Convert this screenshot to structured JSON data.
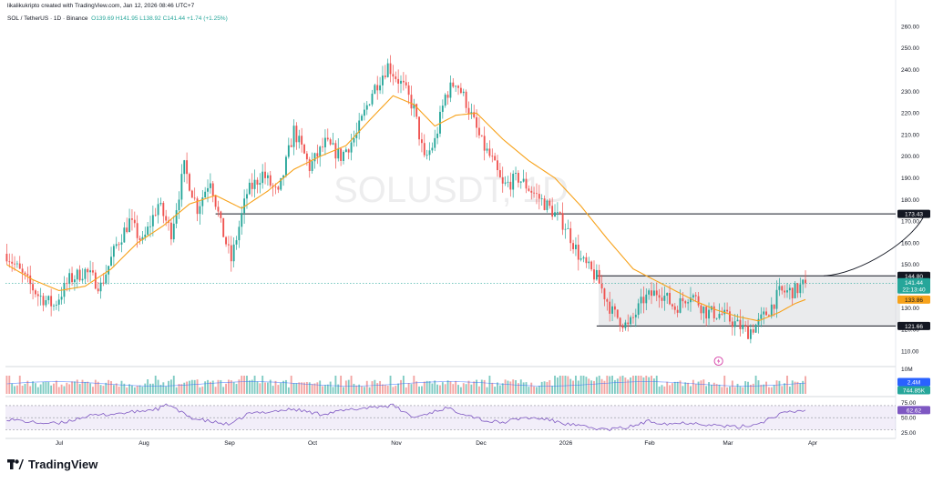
{
  "header": {
    "credit": "likalikukripto created with TradingView.com, Jan 12, 2026 08:46 UTC+7",
    "symbol_line": "SOL / TetherUS · 1D · Binance",
    "ohlc": "O139.69 H141.95 L138.92 C141.44 +1.74 (+1.25%)"
  },
  "watermark": "SOLUSDT, 1D",
  "branding": {
    "logo_text": "TradingView"
  },
  "colors": {
    "up": "#26a69a",
    "down": "#ef5350",
    "ma": "#f7a21b",
    "rsi": "#7e57c2",
    "level": "#131722",
    "price_tag": "#26a69a",
    "ma_tag": "#f7a21b"
  },
  "chart_data": [
    {
      "type": "candlestick",
      "panel": "price",
      "title": "SOL / TetherUS · 1D · Binance",
      "y_axis": {
        "ticks": [
          110,
          120,
          130,
          140,
          150,
          160,
          170,
          180,
          190,
          200,
          210,
          220,
          230,
          240,
          250,
          260
        ],
        "ylim": [
          105,
          263
        ]
      },
      "x_axis": {
        "labels": [
          "Jul",
          "Aug",
          "Sep",
          "Oct",
          "Nov",
          "Dec",
          "2026",
          "Feb",
          "Mar",
          "Apr"
        ]
      },
      "series": [
        {
          "name": "SOLUSDT",
          "type": "candlestick",
          "anchors": [
            [
              0,
              155
            ],
            [
              6,
              145
            ],
            [
              12,
              136
            ],
            [
              18,
              131
            ],
            [
              24,
              143
            ],
            [
              30,
              147
            ],
            [
              36,
              140
            ],
            [
              42,
              159
            ],
            [
              47,
              170
            ],
            [
              52,
              160
            ],
            [
              58,
              178
            ],
            [
              63,
              165
            ],
            [
              68,
              195
            ],
            [
              73,
              176
            ],
            [
              78,
              190
            ],
            [
              82,
              168
            ],
            [
              86,
              152
            ],
            [
              92,
              183
            ],
            [
              98,
              192
            ],
            [
              104,
              182
            ],
            [
              110,
              212
            ],
            [
              116,
              195
            ],
            [
              122,
              206
            ],
            [
              128,
              200
            ],
            [
              134,
              210
            ],
            [
              140,
              230
            ],
            [
              146,
              242
            ],
            [
              152,
              232
            ],
            [
              156,
              222
            ],
            [
              160,
              198
            ],
            [
              164,
              207
            ],
            [
              168,
              228
            ],
            [
              172,
              235
            ],
            [
              176,
              225
            ],
            [
              182,
              206
            ],
            [
              186,
              198
            ],
            [
              190,
              186
            ],
            [
              196,
              190
            ],
            [
              202,
              183
            ],
            [
              208,
              176
            ],
            [
              214,
              168
            ],
            [
              220,
              152
            ],
            [
              226,
              144
            ],
            [
              232,
              128
            ],
            [
              238,
              121
            ],
            [
              244,
              134
            ],
            [
              250,
              138
            ],
            [
              256,
              130
            ],
            [
              262,
              137
            ],
            [
              268,
              128
            ],
            [
              274,
              127
            ],
            [
              280,
              122
            ],
            [
              284,
              119
            ],
            [
              288,
              123
            ],
            [
              292,
              129
            ],
            [
              296,
              137
            ],
            [
              302,
              138
            ],
            [
              306,
              141.44
            ]
          ]
        },
        {
          "name": "MA",
          "type": "line",
          "anchors": [
            [
              0,
              150
            ],
            [
              10,
              143
            ],
            [
              20,
              138
            ],
            [
              30,
              140
            ],
            [
              40,
              148
            ],
            [
              50,
              160
            ],
            [
              60,
              168
            ],
            [
              70,
              178
            ],
            [
              80,
              182
            ],
            [
              90,
              176
            ],
            [
              100,
              184
            ],
            [
              110,
              194
            ],
            [
              120,
              200
            ],
            [
              130,
              205
            ],
            [
              140,
              218
            ],
            [
              148,
              228
            ],
            [
              156,
              224
            ],
            [
              164,
              214
            ],
            [
              172,
              219
            ],
            [
              180,
              220
            ],
            [
              190,
              208
            ],
            [
              200,
              198
            ],
            [
              210,
              190
            ],
            [
              220,
              177
            ],
            [
              230,
              162
            ],
            [
              240,
              148
            ],
            [
              248,
              143
            ],
            [
              256,
              138
            ],
            [
              264,
              133
            ],
            [
              272,
              129
            ],
            [
              280,
              126
            ],
            [
              288,
              124
            ],
            [
              296,
              128
            ],
            [
              302,
              132
            ],
            [
              306,
              133.86
            ]
          ]
        }
      ],
      "levels": [
        {
          "value": 173.43,
          "label": "173.43"
        },
        {
          "value": 144.8,
          "label": "144.80"
        },
        {
          "value": 121.66,
          "label": "121.66"
        }
      ],
      "price_labels": [
        {
          "value": 141.44,
          "label": "141.44",
          "sub": "22:13:40"
        },
        {
          "value": 133.86,
          "label": "133.86"
        }
      ],
      "range_box": {
        "top": 144.8,
        "bottom": 121.66,
        "x_start": 227,
        "x_end": 342
      },
      "projection": {
        "start": [
          313,
          144.8
        ],
        "end": [
          352,
          174
        ]
      }
    },
    {
      "type": "bar",
      "panel": "volume",
      "y_axis": {
        "ticks": [
          "10M"
        ],
        "ylim": [
          0,
          10
        ]
      },
      "price_labels": [
        {
          "value": 2.4,
          "label": "2.4M"
        },
        {
          "value": 0.745,
          "label": "744.85K"
        }
      ]
    },
    {
      "type": "line",
      "panel": "rsi",
      "y_axis": {
        "ticks": [
          25,
          50,
          75
        ],
        "ylim": [
          20,
          82
        ]
      },
      "series": [
        {
          "name": "RSI",
          "anchors": [
            [
              0,
              48
            ],
            [
              10,
              42
            ],
            [
              20,
              40
            ],
            [
              30,
              52
            ],
            [
              40,
              56
            ],
            [
              50,
              60
            ],
            [
              58,
              65
            ],
            [
              62,
              72
            ],
            [
              66,
              60
            ],
            [
              72,
              48
            ],
            [
              80,
              42
            ],
            [
              86,
              38
            ],
            [
              92,
              56
            ],
            [
              100,
              60
            ],
            [
              110,
              64
            ],
            [
              120,
              56
            ],
            [
              130,
              62
            ],
            [
              140,
              68
            ],
            [
              148,
              70
            ],
            [
              152,
              60
            ],
            [
              156,
              50
            ],
            [
              162,
              58
            ],
            [
              168,
              66
            ],
            [
              176,
              56
            ],
            [
              184,
              44
            ],
            [
              190,
              42
            ],
            [
              198,
              50
            ],
            [
              206,
              48
            ],
            [
              214,
              40
            ],
            [
              222,
              34
            ],
            [
              230,
              30
            ],
            [
              238,
              34
            ],
            [
              246,
              44
            ],
            [
              254,
              40
            ],
            [
              262,
              42
            ],
            [
              270,
              38
            ],
            [
              280,
              34
            ],
            [
              288,
              40
            ],
            [
              296,
              56
            ],
            [
              302,
              60
            ],
            [
              306,
              62.62
            ]
          ]
        }
      ],
      "bands": [
        30,
        70
      ],
      "price_labels": [
        {
          "value": 62.62,
          "label": "62.62"
        }
      ]
    }
  ]
}
